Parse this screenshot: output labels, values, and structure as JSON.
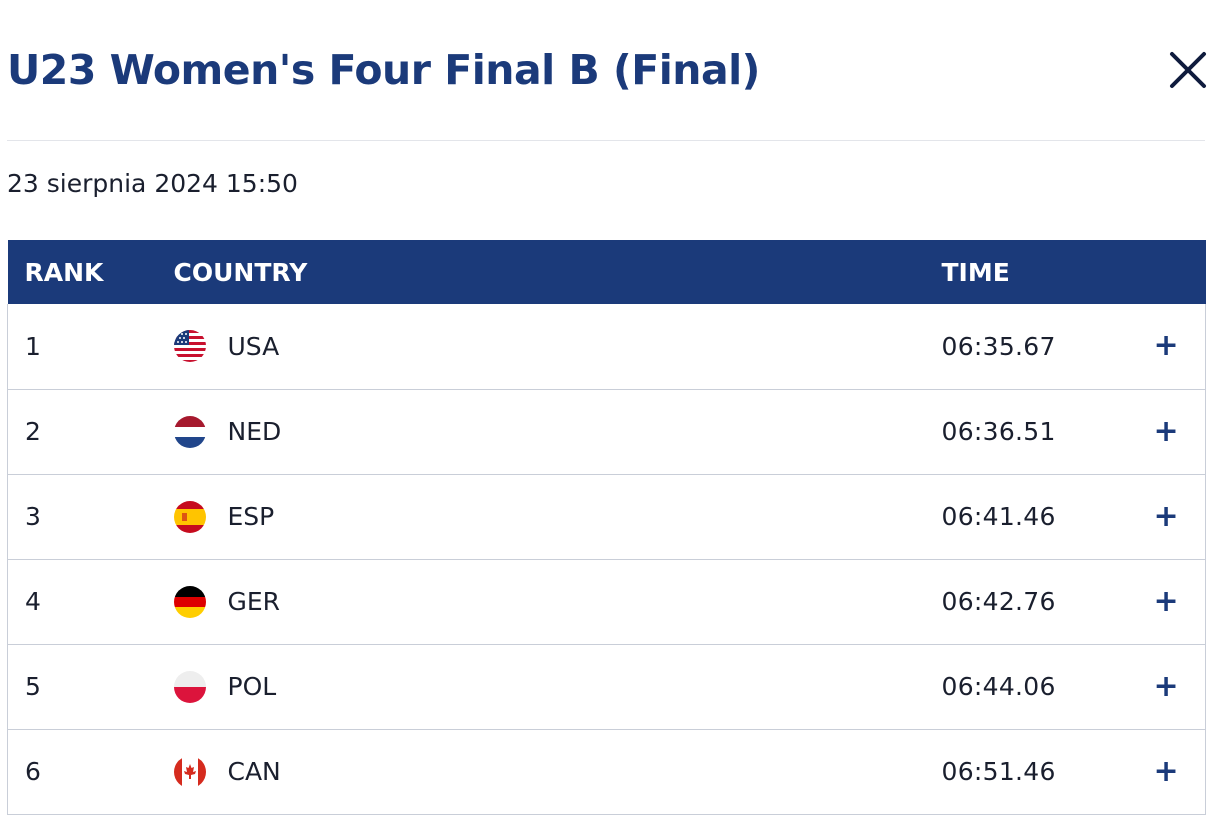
{
  "modal": {
    "title": "U23 Women's Four Final B (Final)",
    "close_icon": "close-icon",
    "date": "23 sierpnia 2024 15:50"
  },
  "table": {
    "headers": {
      "rank": "RANK",
      "country": "COUNTRY",
      "time": "TIME"
    },
    "rows": [
      {
        "rank": "1",
        "country": "USA",
        "flag": "usa-flag-icon",
        "time": "06:35.67",
        "expand": "+"
      },
      {
        "rank": "2",
        "country": "NED",
        "flag": "ned-flag-icon",
        "time": "06:36.51",
        "expand": "+"
      },
      {
        "rank": "3",
        "country": "ESP",
        "flag": "esp-flag-icon",
        "time": "06:41.46",
        "expand": "+"
      },
      {
        "rank": "4",
        "country": "GER",
        "flag": "ger-flag-icon",
        "time": "06:42.76",
        "expand": "+"
      },
      {
        "rank": "5",
        "country": "POL",
        "flag": "pol-flag-icon",
        "time": "06:44.06",
        "expand": "+"
      },
      {
        "rank": "6",
        "country": "CAN",
        "flag": "can-flag-icon",
        "time": "06:51.46",
        "expand": "+"
      }
    ]
  },
  "colors": {
    "brand_navy": "#1b3a7a",
    "header_text": "#ffffff",
    "row_border": "#c9ced8"
  }
}
